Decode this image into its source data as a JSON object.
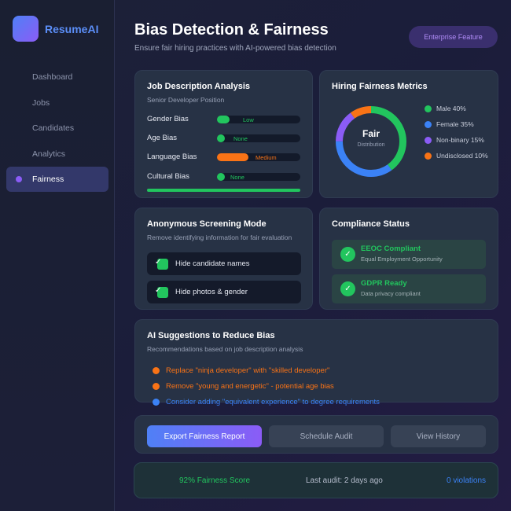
{
  "app": {
    "name": "ResumeAI",
    "colors": {
      "accent_blue": "#4f80f6",
      "accent_purple": "#8b5cf6",
      "success": "#22c55e",
      "warning": "#f97316"
    }
  },
  "sidebar": {
    "items": [
      {
        "label": "Dashboard",
        "active": false
      },
      {
        "label": "Jobs",
        "active": false
      },
      {
        "label": "Candidates",
        "active": false
      },
      {
        "label": "Analytics",
        "active": false
      },
      {
        "label": "Fairness",
        "active": true
      }
    ]
  },
  "header": {
    "title": "Bias Detection & Fairness",
    "subtitle": "Ensure fair hiring practices with AI-powered bias detection",
    "badge": "Enterprise Feature"
  },
  "job_analysis": {
    "title": "Job Description Analysis",
    "subtitle": "Senior Developer Position",
    "rows": [
      {
        "label": "Gender Bias",
        "level": "Low",
        "fill": 0.15,
        "color": "#22c55e",
        "text_color": "#22c55e"
      },
      {
        "label": "Age Bias",
        "level": "None",
        "fill": 0.09,
        "color": "#22c55e",
        "text_color": "#22c55e"
      },
      {
        "label": "Language Bias",
        "level": "Medium",
        "fill": 0.38,
        "color": "#f97316",
        "text_color": "#f97316"
      },
      {
        "label": "Cultural Bias",
        "level": "None",
        "fill": 0.09,
        "color": "#22c55e",
        "text_color": "#22c55e"
      }
    ]
  },
  "fairness_metrics": {
    "title": "Hiring Fairness Metrics",
    "center_label": "Fair",
    "center_sub": "Distribution",
    "legend": [
      {
        "label": "Male 40%",
        "value": 40,
        "color": "#22c55e"
      },
      {
        "label": "Female 35%",
        "value": 35,
        "color": "#3b82f6"
      },
      {
        "label": "Non-binary 15%",
        "value": 15,
        "color": "#8b5cf6"
      },
      {
        "label": "Undisclosed 10%",
        "value": 10,
        "color": "#f97316"
      }
    ]
  },
  "anonymous": {
    "title": "Anonymous Screening Mode",
    "subtitle": "Remove identifying information for fair evaluation",
    "toggles": [
      {
        "label": "Hide candidate names",
        "checked": true
      },
      {
        "label": "Hide photos & gender",
        "checked": true
      }
    ]
  },
  "compliance": {
    "title": "Compliance Status",
    "items": [
      {
        "title": "EEOC Compliant",
        "sub": "Equal Employment Opportunity"
      },
      {
        "title": "GDPR Ready",
        "sub": "Data privacy compliant"
      }
    ]
  },
  "suggestions": {
    "title": "AI Suggestions to Reduce Bias",
    "subtitle": "Recommendations based on job description analysis",
    "items": [
      {
        "text": "Replace \"ninja developer\" with \"skilled developer\"",
        "color": "#f97316"
      },
      {
        "text": "Remove \"young and energetic\" - potential age bias",
        "color": "#f97316"
      },
      {
        "text": "Consider adding \"equivalent experience\" to degree requirements",
        "color": "#3b82f6"
      }
    ]
  },
  "actions": {
    "export": "Export Fairness Report",
    "schedule": "Schedule Audit",
    "history": "View History"
  },
  "footer": {
    "score": "92% Fairness Score",
    "last_audit": "Last audit: 2 days ago",
    "violations": "0 violations"
  }
}
